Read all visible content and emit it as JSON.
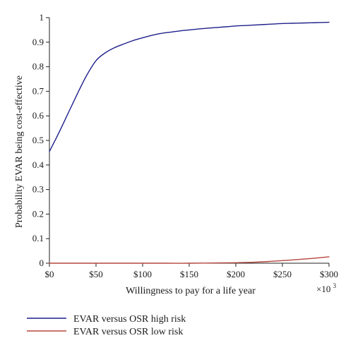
{
  "chart_data": {
    "type": "line",
    "title": "",
    "xlabel": "Willingness to pay for a life year",
    "ylabel": "Probability EVAR being cost-effective",
    "x_multiplier_label": {
      "prefix": "×10",
      "exponent": "3"
    },
    "xlim": [
      0,
      300
    ],
    "ylim": [
      0,
      1
    ],
    "x_ticks": [
      0,
      50,
      100,
      150,
      200,
      250,
      300
    ],
    "x_tick_labels": [
      "$0",
      "$50",
      "$100",
      "$150",
      "$200",
      "$250",
      "$300"
    ],
    "y_ticks": [
      0,
      0.1,
      0.2,
      0.3,
      0.4,
      0.5,
      0.6,
      0.7,
      0.8,
      0.9,
      1
    ],
    "y_tick_labels": [
      "0",
      "0.1",
      "0.2",
      "0.3",
      "0.4",
      "0.5",
      "0.6",
      "0.7",
      "0.8",
      "0.9",
      "1"
    ],
    "grid": false,
    "legend_position": "below",
    "series": [
      {
        "name": "EVAR versus OSR high risk",
        "color": "#1f1f8c",
        "x": [
          0,
          10,
          20,
          30,
          40,
          50,
          60,
          70,
          80,
          90,
          100,
          110,
          120,
          130,
          140,
          150,
          160,
          170,
          180,
          190,
          200,
          210,
          220,
          230,
          240,
          250,
          260,
          270,
          280,
          290,
          300
        ],
        "y": [
          0.455,
          0.53,
          0.61,
          0.69,
          0.765,
          0.825,
          0.857,
          0.878,
          0.893,
          0.907,
          0.918,
          0.928,
          0.936,
          0.941,
          0.946,
          0.95,
          0.954,
          0.957,
          0.96,
          0.963,
          0.966,
          0.968,
          0.97,
          0.972,
          0.974,
          0.976,
          0.977,
          0.978,
          0.979,
          0.98,
          0.981
        ]
      },
      {
        "name": "EVAR versus OSR low risk",
        "color": "#b5463f",
        "x": [
          0,
          25,
          50,
          75,
          100,
          125,
          150,
          175,
          200,
          220,
          240,
          260,
          280,
          300
        ],
        "y": [
          0,
          0,
          0,
          0,
          0,
          0,
          0,
          0.001,
          0.002,
          0.004,
          0.008,
          0.013,
          0.019,
          0.026
        ]
      }
    ]
  }
}
